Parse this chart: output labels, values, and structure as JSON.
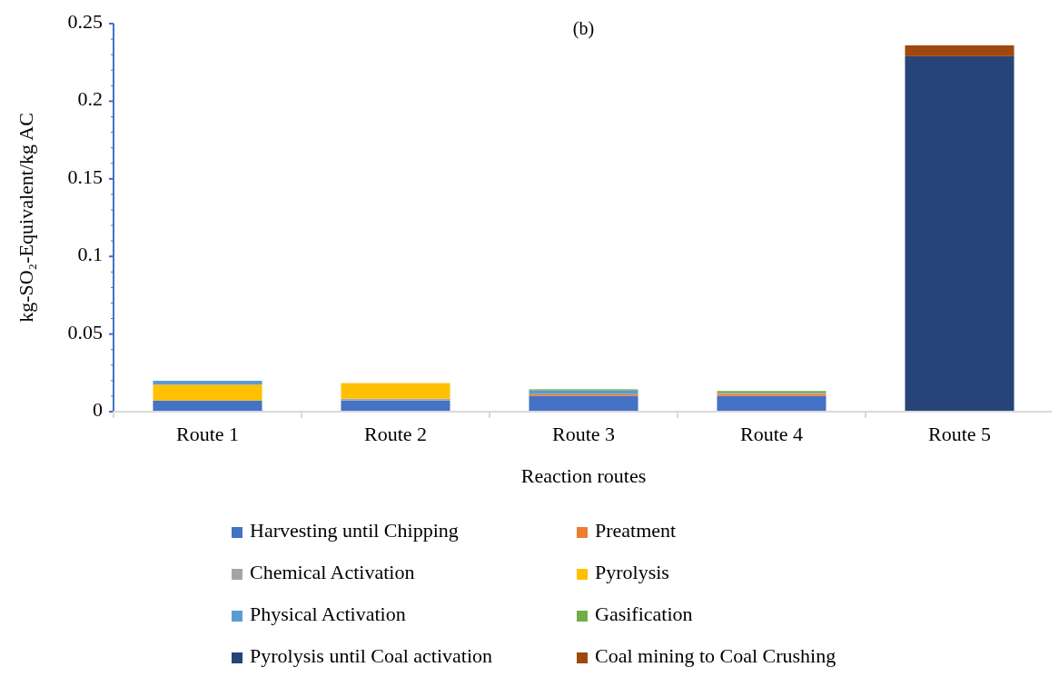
{
  "chart_data": {
    "type": "bar",
    "title": "(b)",
    "xlabel": "Reaction routes",
    "ylabel": "kg-SO₂-Equivalent/kg  AC",
    "categories": [
      "Route 1",
      "Route 2",
      "Route 3",
      "Route 4",
      "Route 5"
    ],
    "stacked": true,
    "ylim": [
      0,
      0.25
    ],
    "yticks": [
      0,
      0.05,
      0.1,
      0.15,
      0.2,
      0.25
    ],
    "legend": "bottom",
    "grid": false,
    "series": [
      {
        "name": "Harvesting  until Chipping",
        "color": "#4472c4",
        "values": [
          0.0072,
          0.0072,
          0.0101,
          0.0101,
          0
        ]
      },
      {
        "name": "Preatment",
        "color": "#ed7d31",
        "values": [
          0,
          0,
          0.0012,
          0.0012,
          0
        ]
      },
      {
        "name": "Chemical Activation",
        "color": "#a5a5a5",
        "values": [
          0,
          0.0012,
          0,
          0.001,
          0
        ]
      },
      {
        "name": "Pyrolysis",
        "color": "#ffc000",
        "values": [
          0.0102,
          0.01,
          0,
          0,
          0
        ]
      },
      {
        "name": "Physical Activation",
        "color": "#5b9bd5",
        "values": [
          0.0025,
          0,
          0.0023,
          0,
          0
        ]
      },
      {
        "name": "Gasification",
        "color": "#70ad47",
        "values": [
          0,
          0,
          0.0008,
          0.001,
          0
        ]
      },
      {
        "name": "Pyrolysis until Coal activation",
        "color": "#264478",
        "values": [
          0,
          0,
          0,
          0,
          0.229
        ]
      },
      {
        "name": "Coal mining to Coal Crushing",
        "color": "#9e480e",
        "values": [
          0,
          0,
          0,
          0,
          0.007
        ]
      }
    ]
  }
}
